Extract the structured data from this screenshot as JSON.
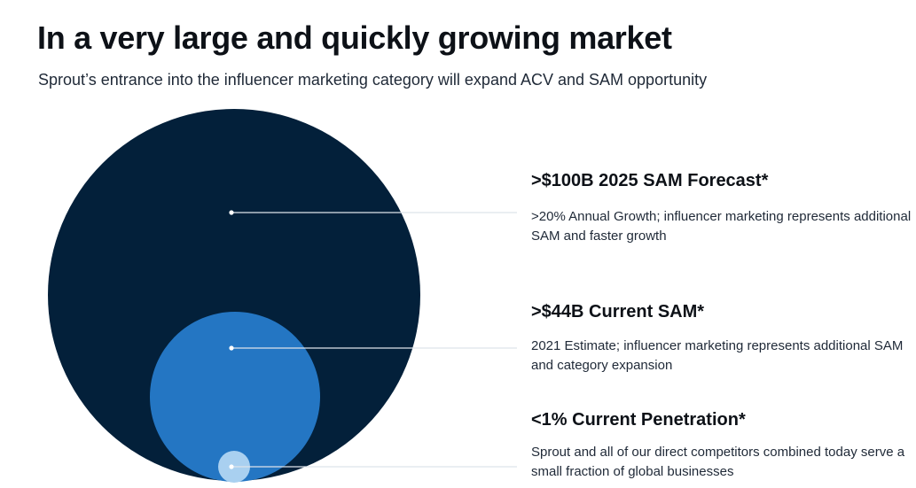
{
  "header": {
    "title": "In a very large and quickly growing market",
    "subtitle": "Sprout’s entrance into the influencer marketing category will expand ACV and SAM opportunity"
  },
  "colors": {
    "outer_circle": "#03203a",
    "middle_circle": "#2476c3",
    "inner_circle": "#a9d0f0",
    "connector": "#dde3ea"
  },
  "items": [
    {
      "heading": ">$100B 2025 SAM Forecast*",
      "description": ">20% Annual Growth; influencer marketing represents additional SAM and faster growth"
    },
    {
      "heading": ">$44B Current SAM*",
      "description": "2021 Estimate; influencer marketing represents additional SAM and category expansion"
    },
    {
      "heading": "<1% Current Penetration*",
      "description": "Sprout and all of our direct competitors combined today serve a small fraction of global businesses"
    }
  ]
}
